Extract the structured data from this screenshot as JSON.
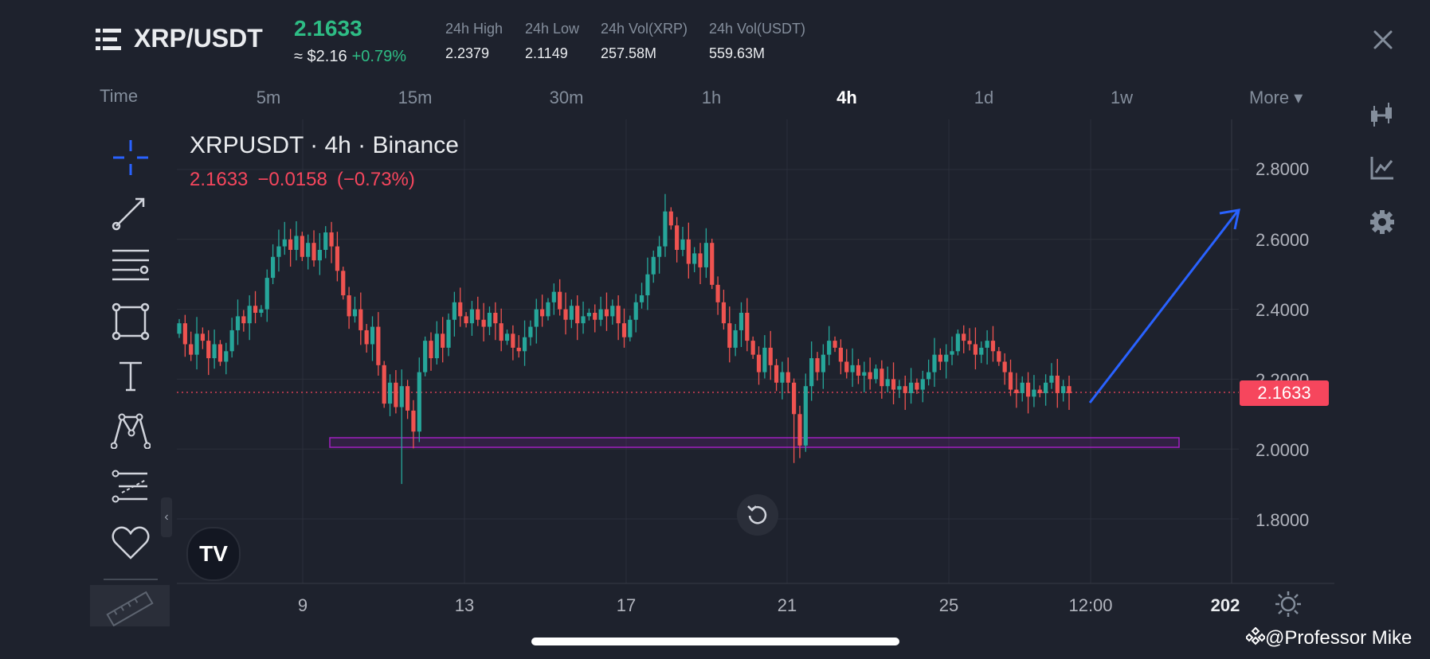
{
  "header": {
    "pair": "XRP/USDT",
    "last_price": "2.1633",
    "approx": "≈ $2.16",
    "change_pct": "+0.79%",
    "stats": [
      {
        "label": "24h High",
        "value": "2.2379"
      },
      {
        "label": "24h Low",
        "value": "2.1149"
      },
      {
        "label": "24h Vol(XRP)",
        "value": "257.58M"
      },
      {
        "label": "24h Vol(USDT)",
        "value": "559.63M"
      }
    ]
  },
  "intervals": {
    "time_label": "Time",
    "items": [
      "5m",
      "15m",
      "30m",
      "1h",
      "4h",
      "1d",
      "1w"
    ],
    "active": "4h",
    "more_label": "More ▾"
  },
  "chart": {
    "symbol_line": "XRPUSDT · 4h · Binance",
    "last": "2.1633",
    "change_abs": "−0.0158",
    "change_pct": "(−0.73%)",
    "price_tag": "2.1633",
    "logo_text": "TV"
  },
  "chart_data": {
    "type": "candlestick",
    "symbol": "XRPUSDT",
    "interval": "4h",
    "y_ticks": [
      "2.8000",
      "2.6000",
      "2.4000",
      "2.2000",
      "2.0000",
      "1.8000"
    ],
    "x_ticks": [
      "9",
      "13",
      "17",
      "21",
      "25",
      "12:00",
      "202"
    ],
    "ylim": [
      1.75,
      2.9
    ],
    "current_price": 2.1633,
    "support_zone": [
      2.005,
      2.035
    ],
    "projection_target": 2.68,
    "colors": {
      "up": "#26a69a",
      "down": "#ef5350",
      "zone": "#a020c0",
      "arrow": "#2962ff"
    },
    "candles_close": [
      2.36,
      2.3,
      2.27,
      2.33,
      2.31,
      2.26,
      2.3,
      2.25,
      2.28,
      2.34,
      2.38,
      2.36,
      2.41,
      2.39,
      2.4,
      2.49,
      2.55,
      2.58,
      2.6,
      2.57,
      2.61,
      2.55,
      2.59,
      2.54,
      2.57,
      2.62,
      2.58,
      2.51,
      2.44,
      2.38,
      2.4,
      2.34,
      2.3,
      2.35,
      2.24,
      2.13,
      2.19,
      2.12,
      2.18,
      2.11,
      2.05,
      2.22,
      2.31,
      2.26,
      2.33,
      2.29,
      2.37,
      2.42,
      2.38,
      2.36,
      2.4,
      2.37,
      2.35,
      2.39,
      2.36,
      2.31,
      2.33,
      2.29,
      2.28,
      2.32,
      2.35,
      2.4,
      2.38,
      2.42,
      2.45,
      2.4,
      2.37,
      2.41,
      2.36,
      2.38,
      2.39,
      2.37,
      2.4,
      2.38,
      2.41,
      2.36,
      2.32,
      2.37,
      2.42,
      2.44,
      2.5,
      2.55,
      2.58,
      2.68,
      2.64,
      2.57,
      2.6,
      2.53,
      2.56,
      2.52,
      2.59,
      2.47,
      2.42,
      2.36,
      2.29,
      2.34,
      2.39,
      2.31,
      2.27,
      2.22,
      2.29,
      2.24,
      2.19,
      2.22,
      2.19,
      2.1,
      2.01,
      2.18,
      2.26,
      2.22,
      2.27,
      2.31,
      2.29,
      2.25,
      2.22,
      2.24,
      2.21,
      2.22,
      2.2,
      2.23,
      2.18,
      2.2,
      2.17,
      2.18,
      2.16,
      2.19,
      2.17,
      2.2,
      2.22,
      2.27,
      2.25,
      2.27,
      2.28,
      2.33,
      2.31,
      2.3,
      2.27,
      2.29,
      2.31,
      2.28,
      2.25,
      2.22,
      2.17,
      2.16,
      2.19,
      2.15,
      2.17,
      2.16,
      2.19,
      2.21,
      2.16,
      2.18,
      2.16
    ]
  },
  "watermark": "@Professor Mike",
  "icon_names": {
    "menu": "menu-icon",
    "close": "close-icon",
    "crosshair": "crosshair-icon",
    "trendline": "trendline-icon",
    "fib": "fib-levels-icon",
    "rect": "rectangle-icon",
    "text": "text-icon",
    "pattern": "pattern-icon",
    "prediction": "forecast-icon",
    "fav": "heart-icon",
    "ruler": "ruler-icon",
    "candle": "candle-type-icon",
    "indicator": "indicator-icon",
    "settings": "settings-gear-icon",
    "sun": "theme-sun-icon",
    "reset": "reset-icon"
  }
}
